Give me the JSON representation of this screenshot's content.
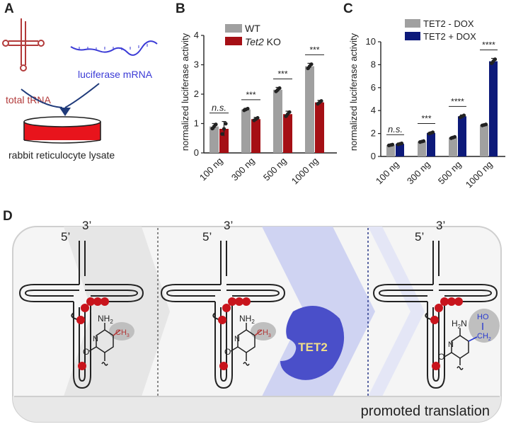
{
  "panels": {
    "a": "A",
    "b": "B",
    "c": "C",
    "d": "D"
  },
  "panel_a": {
    "trna_label": "total tRNA",
    "mrna_label": "luciferase mRNA",
    "lysate_label": "rabbit reticulocyte lysate",
    "colors": {
      "trna": "#b23a3a",
      "mrna": "#3b3bd6",
      "lysate": "#e8141c",
      "arrow": "#1f3a7a"
    }
  },
  "chart_data": [
    {
      "type": "bar",
      "panel": "B",
      "title": "",
      "ylabel": "normalized luciferase activity",
      "xlabel": "",
      "ylim": [
        0,
        4
      ],
      "yticks": [
        "0",
        "1",
        "2",
        "3",
        "4"
      ],
      "categories": [
        "100 ng",
        "300 ng",
        "500 ng",
        "1000 ng"
      ],
      "series": [
        {
          "name": "WT",
          "legend_label": "WT",
          "color": "#a0a0a0",
          "values": [
            0.9,
            1.48,
            2.15,
            2.95
          ],
          "errors": [
            0.1,
            0.04,
            0.08,
            0.1
          ]
        },
        {
          "name": "Tet2 KO",
          "legend_italic": "Tet2",
          "legend_rest": " KO",
          "color": "#a50f15",
          "values": [
            0.82,
            1.15,
            1.32,
            1.72
          ],
          "errors": [
            0.25,
            0.06,
            0.1,
            0.07
          ]
        }
      ],
      "significance": [
        "n.s.",
        "***",
        "***",
        "***"
      ]
    },
    {
      "type": "bar",
      "panel": "C",
      "title": "",
      "ylabel": "normalized luciferase activity",
      "xlabel": "",
      "ylim": [
        0,
        10
      ],
      "yticks": [
        "0",
        "2",
        "4",
        "6",
        "8",
        "10"
      ],
      "categories": [
        "100 ng",
        "300 ng",
        "500 ng",
        "1000 ng"
      ],
      "series": [
        {
          "name": "TET2 - DOX",
          "legend_label": "TET2 - DOX",
          "color": "#a0a0a0",
          "values": [
            1.0,
            1.3,
            1.65,
            2.75
          ],
          "errors": [
            0.05,
            0.06,
            0.08,
            0.06
          ]
        },
        {
          "name": "TET2 + DOX",
          "legend_label": "TET2 + DOX",
          "color": "#0d1a7a",
          "values": [
            1.1,
            2.05,
            3.5,
            8.3
          ],
          "errors": [
            0.06,
            0.08,
            0.12,
            0.25
          ]
        }
      ],
      "significance": [
        "n.s.",
        "***",
        "****",
        "****"
      ]
    }
  ],
  "panel_d": {
    "five_prime": "5’",
    "three_prime": "3’",
    "enzyme": "TET2",
    "methyl": "CH",
    "methyl_sub": "3",
    "amine": "NH",
    "amine_sub": "2",
    "amine_right": "H",
    "amine_right_n": "N",
    "ring_o": "O",
    "ring_n": "N",
    "hm_ho": "HO",
    "hm_ch": "CH",
    "hm_sub": "2",
    "footer": "promoted translation",
    "colors": {
      "enzyme": "#4a4fc9",
      "enzyme_text": "#f0de8a",
      "mod": "#c8141c",
      "hm": "#2a3bd0",
      "methyl_line": "#b23a3a"
    }
  }
}
